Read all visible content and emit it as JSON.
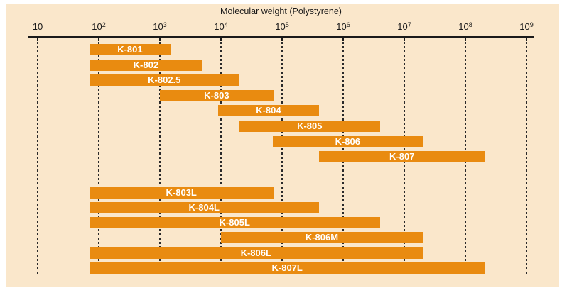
{
  "chart_data": {
    "type": "bar",
    "orientation": "horizontal-range",
    "title": "Molecular weight (Polystyrene)",
    "x_axis": {
      "scale": "log",
      "min": 10,
      "max": 1000000000,
      "tick_base": "10",
      "tick_exponents": [
        1,
        2,
        3,
        4,
        5,
        6,
        7,
        8,
        9
      ]
    },
    "grid": "vertical-dashed",
    "legend": "none",
    "bars": [
      {
        "label": "K-801",
        "min": 70,
        "max": 1500,
        "group": "standard"
      },
      {
        "label": "K-802",
        "min": 70,
        "max": 5000,
        "group": "standard"
      },
      {
        "label": "K-802.5",
        "min": 70,
        "max": 20000,
        "group": "standard"
      },
      {
        "label": "K-803",
        "min": 1000,
        "max": 72000,
        "group": "standard"
      },
      {
        "label": "K-804",
        "min": 9000,
        "max": 400000,
        "group": "standard"
      },
      {
        "label": "K-805",
        "min": 20000,
        "max": 4000000,
        "group": "standard"
      },
      {
        "label": "K-806",
        "min": 70000,
        "max": 20000000,
        "group": "standard"
      },
      {
        "label": "K-807",
        "min": 400000,
        "max": 210000000,
        "group": "standard"
      },
      {
        "label": "K-803L",
        "min": 70,
        "max": 72000,
        "group": "linear"
      },
      {
        "label": "K-804L",
        "min": 70,
        "max": 400000,
        "group": "linear"
      },
      {
        "label": "K-805L",
        "min": 70,
        "max": 4000000,
        "group": "linear"
      },
      {
        "label": "K-806M",
        "min": 10000,
        "max": 20000000,
        "group": "linear"
      },
      {
        "label": "K-806L",
        "min": 70,
        "max": 20000000,
        "group": "linear"
      },
      {
        "label": "K-807L",
        "min": 70,
        "max": 210000000,
        "group": "linear"
      }
    ],
    "colors": {
      "bar": "#e98b10",
      "bar_label": "#ffffff",
      "panel_background": "#fae7cb",
      "page_background": "#ffffff",
      "axis": "#1a1a1a",
      "grid": "#2a2a2a",
      "text": "#1a1a1a"
    }
  }
}
